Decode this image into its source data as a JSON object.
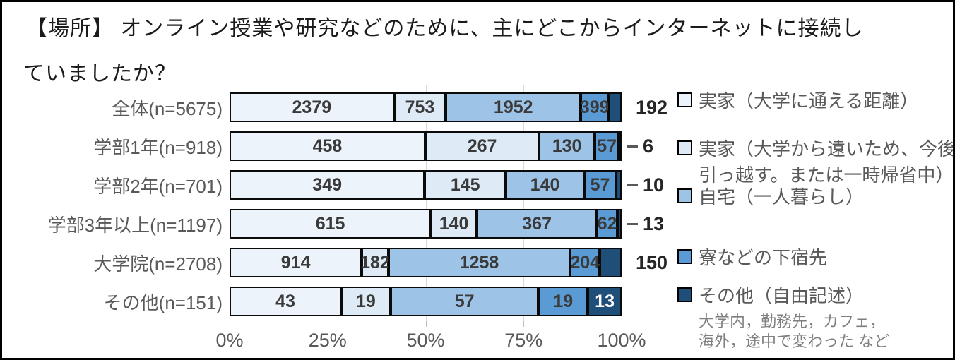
{
  "title": {
    "line1": "【場所】 オンライン授業や研究などのために、主にどこからインターネットに接続し",
    "line2": "ていましたか？"
  },
  "chart_data": {
    "type": "bar",
    "orientation": "horizontal",
    "stacked": true,
    "normalized": "percent_of_row_total",
    "title": "【場所】 オンライン授業や研究などのために、主にどこからインターネットに接続していましたか？",
    "categories": [
      "全体(n=5675)",
      "学部1年(n=918)",
      "学部2年(n=701)",
      "学部3年以上(n=1197)",
      "大学院(n=2708)",
      "その他(n=151)"
    ],
    "series": [
      {
        "name": "実家（大学に通える距離）",
        "color": "#ECF3FA",
        "values": [
          2379,
          458,
          349,
          615,
          914,
          43
        ]
      },
      {
        "name": "実家（大学から遠いため、今後引っ越す。または一時帰省中）",
        "color": "#DEEBF7",
        "values": [
          753,
          267,
          145,
          140,
          182,
          19
        ]
      },
      {
        "name": "自宅（一人暮らし）",
        "color": "#9DC3E6",
        "values": [
          1952,
          130,
          140,
          367,
          1258,
          57
        ]
      },
      {
        "name": "寮などの下宿先",
        "color": "#5B9BD5",
        "values": [
          399,
          57,
          57,
          62,
          204,
          19
        ]
      },
      {
        "name": "その他（自由記述）",
        "color": "#1F4E79",
        "values": [
          192,
          6,
          10,
          13,
          150,
          13
        ]
      }
    ],
    "row_totals": [
      5675,
      918,
      701,
      1197,
      2708,
      151
    ],
    "last_segment_value_placement": [
      "outside",
      "outside-leader",
      "outside-leader",
      "outside-leader",
      "outside",
      "inside"
    ],
    "x_tick_labels": [
      "0%",
      "25%",
      "50%",
      "75%",
      "100%"
    ],
    "xlim": [
      0,
      100
    ],
    "grid": true,
    "legend_position": "right",
    "legend_note_lines": [
      "大学内，勤務先，カフェ，",
      "海外，途中で変わった など"
    ]
  },
  "colors": {
    "segment_border": "#0a0a0a",
    "gridline": "#d9d9d9",
    "category_label": "#595959",
    "axis_label": "#595959",
    "inside_value": "#3a3a3a",
    "inside_value_on_dark": "#ffffff",
    "outside_value": "#262626",
    "legend_text": "#595959",
    "legend_note": "#7f7f7f",
    "title_text": "#1a1a1a"
  }
}
